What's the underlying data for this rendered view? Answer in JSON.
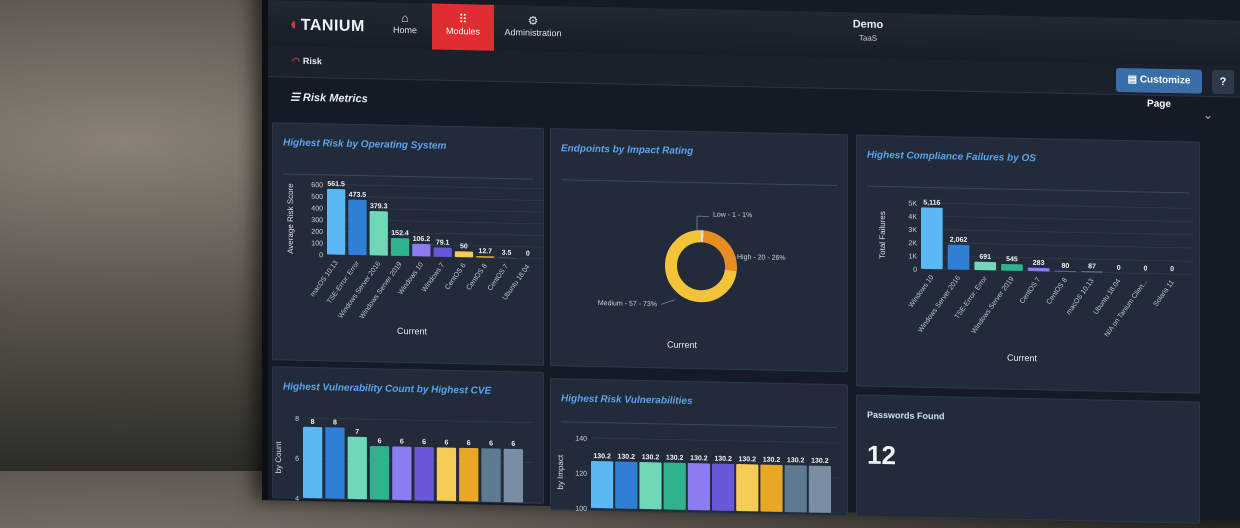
{
  "app": {
    "logo": "TANIUM",
    "tenant_name": "Demo",
    "tenant_sub": "TaaS"
  },
  "nav": [
    {
      "label": "Home",
      "icon": "home-icon"
    },
    {
      "label": "Modules",
      "icon": "grid-icon"
    },
    {
      "label": "Administration",
      "icon": "gear-icon"
    }
  ],
  "breadcrumb": {
    "label": "Risk",
    "icon": "risk-icon"
  },
  "toolbar": {
    "customize_label": "Customize Page",
    "help_label": "?"
  },
  "section": {
    "title": "Risk Metrics"
  },
  "panels": {
    "p1": {
      "title": "Highest Risk by Operating System",
      "footer": "Current"
    },
    "p2": {
      "title": "Endpoints by Impact Rating",
      "footer": "Current"
    },
    "p3": {
      "title": "Highest Compliance Failures by OS",
      "footer": "Current"
    },
    "p4": {
      "title": "Highest Vulnerability Count by Highest CVE"
    },
    "p5": {
      "title": "Highest Risk Vulnerabilities"
    },
    "p6": {
      "title": "Passwords Found",
      "value": "12"
    }
  },
  "chart_data": [
    {
      "type": "bar",
      "title": "Highest Risk by Operating System",
      "ylabel": "Average Risk Score",
      "xlabel": "Current",
      "ylim": [
        0,
        600
      ],
      "yticks": [
        "600",
        "500",
        "400",
        "300",
        "200",
        "100",
        "0"
      ],
      "categories": [
        "macOS 10.13",
        "TSE-Error: Error",
        "Windows Server 2016",
        "Windows Server 2019",
        "Windows 10",
        "Windows 7",
        "CentOS 6",
        "CentOS 8",
        "CentOS 7",
        "Ubuntu 18.04"
      ],
      "values": [
        561.5,
        473.5,
        379.3,
        152.4,
        106.2,
        79.1,
        50,
        12.7,
        3.5,
        0
      ],
      "labels": [
        "561.5",
        "473.5",
        "379.3",
        "152.4",
        "106.2",
        "79.1",
        "50",
        "12.7",
        "3.5",
        "0"
      ],
      "colors": [
        "#5ab8f5",
        "#2f7fd6",
        "#6fd8b8",
        "#2fb38f",
        "#8b7cf0",
        "#6a57d9",
        "#f5cc55",
        "#e8a825",
        "#5e7a93",
        "#7a8ea3"
      ]
    },
    {
      "type": "pie",
      "title": "Endpoints by Impact Rating",
      "xlabel": "Current",
      "slices": [
        {
          "name": "Low",
          "value": 1,
          "pct": "1%",
          "color": "#d9dfe6"
        },
        {
          "name": "High",
          "value": 20,
          "pct": "26%",
          "color": "#e88c1f"
        },
        {
          "name": "Medium",
          "value": 57,
          "pct": "73%",
          "color": "#f3c43a"
        }
      ]
    },
    {
      "type": "bar",
      "title": "Highest Compliance Failures by OS",
      "ylabel": "Total Failures",
      "xlabel": "Current",
      "ylim": [
        0,
        5500
      ],
      "yticks": [
        "5K",
        "4K",
        "3K",
        "2K",
        "1K",
        "0"
      ],
      "categories": [
        "Windows 10",
        "Windows Server 2016",
        "TSE-Error: Error",
        "Windows Server 2019",
        "CentOS 7",
        "CentOS 8",
        "macOS 10.13",
        "Ubuntu 18.04",
        "N/A on Tanium Clien...",
        "Solaris 11"
      ],
      "values": [
        5116,
        2062,
        691,
        545,
        283,
        80,
        87,
        0,
        0,
        0
      ],
      "labels": [
        "5,116",
        "2,062",
        "691",
        "545",
        "283",
        "80",
        "87",
        "0",
        "0",
        "0"
      ],
      "colors": [
        "#5ab8f5",
        "#2f7fd6",
        "#6fd8b8",
        "#2fb38f",
        "#8b7cf0",
        "#6a57d9",
        "#5e7a93",
        "#7a8ea3",
        "#7a8ea3",
        "#7a8ea3"
      ]
    },
    {
      "type": "bar",
      "title": "Highest Vulnerability Count by Highest CVE",
      "ylabel": "by Count",
      "ylim": [
        0,
        9
      ],
      "yticks": [
        "8",
        "6",
        "4"
      ],
      "values": [
        8,
        8,
        7,
        6,
        6,
        6,
        6,
        6,
        6,
        6
      ],
      "labels": [
        "8",
        "8",
        "7",
        "6",
        "6",
        "6",
        "6",
        "6",
        "6",
        "6"
      ],
      "colors": [
        "#5ab8f5",
        "#2f7fd6",
        "#6fd8b8",
        "#2fb38f",
        "#8b7cf0",
        "#6a57d9",
        "#f5cc55",
        "#e8a825",
        "#5e7a93",
        "#7a8ea3"
      ]
    },
    {
      "type": "bar",
      "title": "Highest Risk Vulnerabilities",
      "ylabel": "by Impact",
      "ylim": [
        0,
        150
      ],
      "yticks": [
        "140",
        "120",
        "100"
      ],
      "values": [
        130.2,
        130.2,
        130.2,
        130.2,
        130.2,
        130.2,
        130.2,
        130.2,
        130.2,
        130.2
      ],
      "labels": [
        "130.2",
        "130.2",
        "130.2",
        "130.2",
        "130.2",
        "130.2",
        "130.2",
        "130.2",
        "130.2",
        "130.2"
      ],
      "colors": [
        "#5ab8f5",
        "#2f7fd6",
        "#6fd8b8",
        "#2fb38f",
        "#8b7cf0",
        "#6a57d9",
        "#f5cc55",
        "#e8a825",
        "#5e7a93",
        "#7a8ea3"
      ]
    }
  ]
}
